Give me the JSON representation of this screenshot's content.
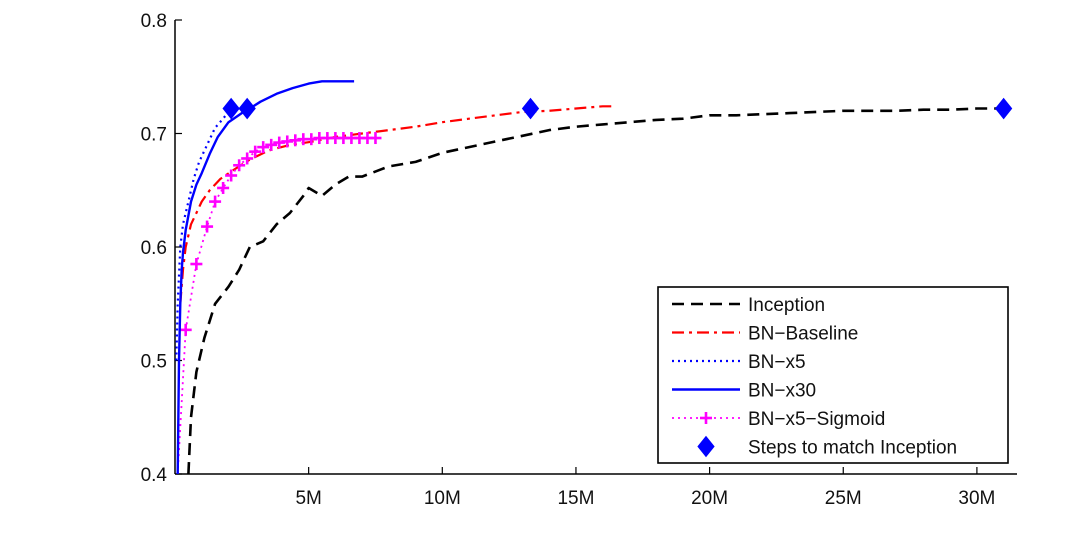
{
  "chart_data": {
    "type": "line",
    "title": "",
    "xlabel": "",
    "ylabel": "",
    "xlim": [
      0,
      31.5
    ],
    "ylim": [
      0.4,
      0.8
    ],
    "x_unit": "M steps",
    "xticks": [
      5,
      10,
      15,
      20,
      25,
      30
    ],
    "xtick_labels": [
      "5M",
      "10M",
      "15M",
      "20M",
      "25M",
      "30M"
    ],
    "yticks": [
      0.4,
      0.5,
      0.6,
      0.7,
      0.8
    ],
    "ytick_labels": [
      "0.4",
      "0.5",
      "0.6",
      "0.7",
      "0.8"
    ],
    "grid": false,
    "legend_position": "bottom-right",
    "series": [
      {
        "name": "Inception",
        "color": "#000000",
        "style": "dashed",
        "x": [
          0.5,
          0.6,
          0.8,
          1.1,
          1.5,
          2.0,
          2.4,
          2.8,
          3.3,
          3.8,
          4.3,
          4.8,
          5.0,
          5.5,
          6.0,
          6.5,
          7.0,
          8.0,
          9.0,
          10.0,
          11.0,
          12.0,
          13.0,
          14.0,
          15.0,
          16.0,
          17.0,
          18.0,
          19.0,
          20.0,
          21.0,
          22.0,
          23.0,
          24.0,
          25.0,
          26.0,
          27.0,
          28.0,
          29.0,
          30.0,
          31.0
        ],
        "y": [
          0.4,
          0.45,
          0.49,
          0.52,
          0.55,
          0.565,
          0.58,
          0.6,
          0.605,
          0.62,
          0.63,
          0.645,
          0.652,
          0.645,
          0.655,
          0.662,
          0.662,
          0.671,
          0.675,
          0.683,
          0.688,
          0.693,
          0.698,
          0.703,
          0.706,
          0.708,
          0.71,
          0.712,
          0.713,
          0.716,
          0.716,
          0.717,
          0.718,
          0.719,
          0.72,
          0.72,
          0.72,
          0.721,
          0.721,
          0.722,
          0.722
        ]
      },
      {
        "name": "BN−Baseline",
        "color": "#ff0000",
        "style": "dash-dot",
        "x": [
          0.2,
          0.3,
          0.4,
          0.6,
          0.8,
          1.0,
          1.3,
          1.7,
          2.2,
          2.8,
          3.5,
          4.3,
          5.2,
          6.0,
          7.0,
          8.0,
          9.0,
          10.0,
          11.0,
          12.0,
          13.0,
          14.0,
          15.0,
          16.0,
          16.5
        ],
        "y": [
          0.55,
          0.58,
          0.6,
          0.62,
          0.63,
          0.64,
          0.65,
          0.66,
          0.668,
          0.677,
          0.685,
          0.69,
          0.693,
          0.697,
          0.7,
          0.703,
          0.706,
          0.71,
          0.713,
          0.716,
          0.719,
          0.72,
          0.722,
          0.724,
          0.724
        ]
      },
      {
        "name": "BN−x5",
        "color": "#0000ff",
        "style": "dotted",
        "x": [
          0.05,
          0.1,
          0.2,
          0.3,
          0.5,
          0.7,
          0.9,
          1.2,
          1.5,
          1.8,
          2.1
        ],
        "y": [
          0.5,
          0.55,
          0.6,
          0.62,
          0.64,
          0.66,
          0.675,
          0.69,
          0.705,
          0.713,
          0.722
        ]
      },
      {
        "name": "BN−x30",
        "color": "#0000ff",
        "style": "solid",
        "x": [
          0.1,
          0.15,
          0.2,
          0.25,
          0.3,
          0.4,
          0.6,
          0.8,
          1.0,
          1.3,
          1.6,
          2.0,
          2.5,
          2.8,
          3.2,
          3.8,
          4.4,
          5.0,
          5.5,
          6.0,
          6.5,
          6.7
        ],
        "y": [
          0.4,
          0.5,
          0.55,
          0.58,
          0.595,
          0.615,
          0.64,
          0.655,
          0.665,
          0.682,
          0.697,
          0.71,
          0.718,
          0.722,
          0.728,
          0.735,
          0.74,
          0.744,
          0.746,
          0.746,
          0.746,
          0.746
        ]
      },
      {
        "name": "BN−x5−Sigmoid",
        "color": "#ff00ff",
        "style": "dotted-plus",
        "x": [
          0.1,
          0.4,
          0.8,
          1.2,
          1.5,
          1.8,
          2.1,
          2.4,
          2.7,
          3.0,
          3.3,
          3.6,
          3.9,
          4.2,
          4.5,
          4.8,
          5.1,
          5.4,
          5.7,
          6.0,
          6.3,
          6.6,
          6.9,
          7.2,
          7.5
        ],
        "y": [
          0.4,
          0.527,
          0.585,
          0.618,
          0.64,
          0.652,
          0.663,
          0.672,
          0.678,
          0.684,
          0.688,
          0.69,
          0.692,
          0.693,
          0.694,
          0.695,
          0.695,
          0.696,
          0.696,
          0.696,
          0.696,
          0.696,
          0.696,
          0.696,
          0.696
        ]
      },
      {
        "name": "Steps to match Inception",
        "color": "#0000ff",
        "style": "markers-diamond",
        "x": [
          2.1,
          2.7,
          13.3,
          31.0
        ],
        "y": [
          0.722,
          0.722,
          0.722,
          0.722
        ]
      }
    ]
  }
}
